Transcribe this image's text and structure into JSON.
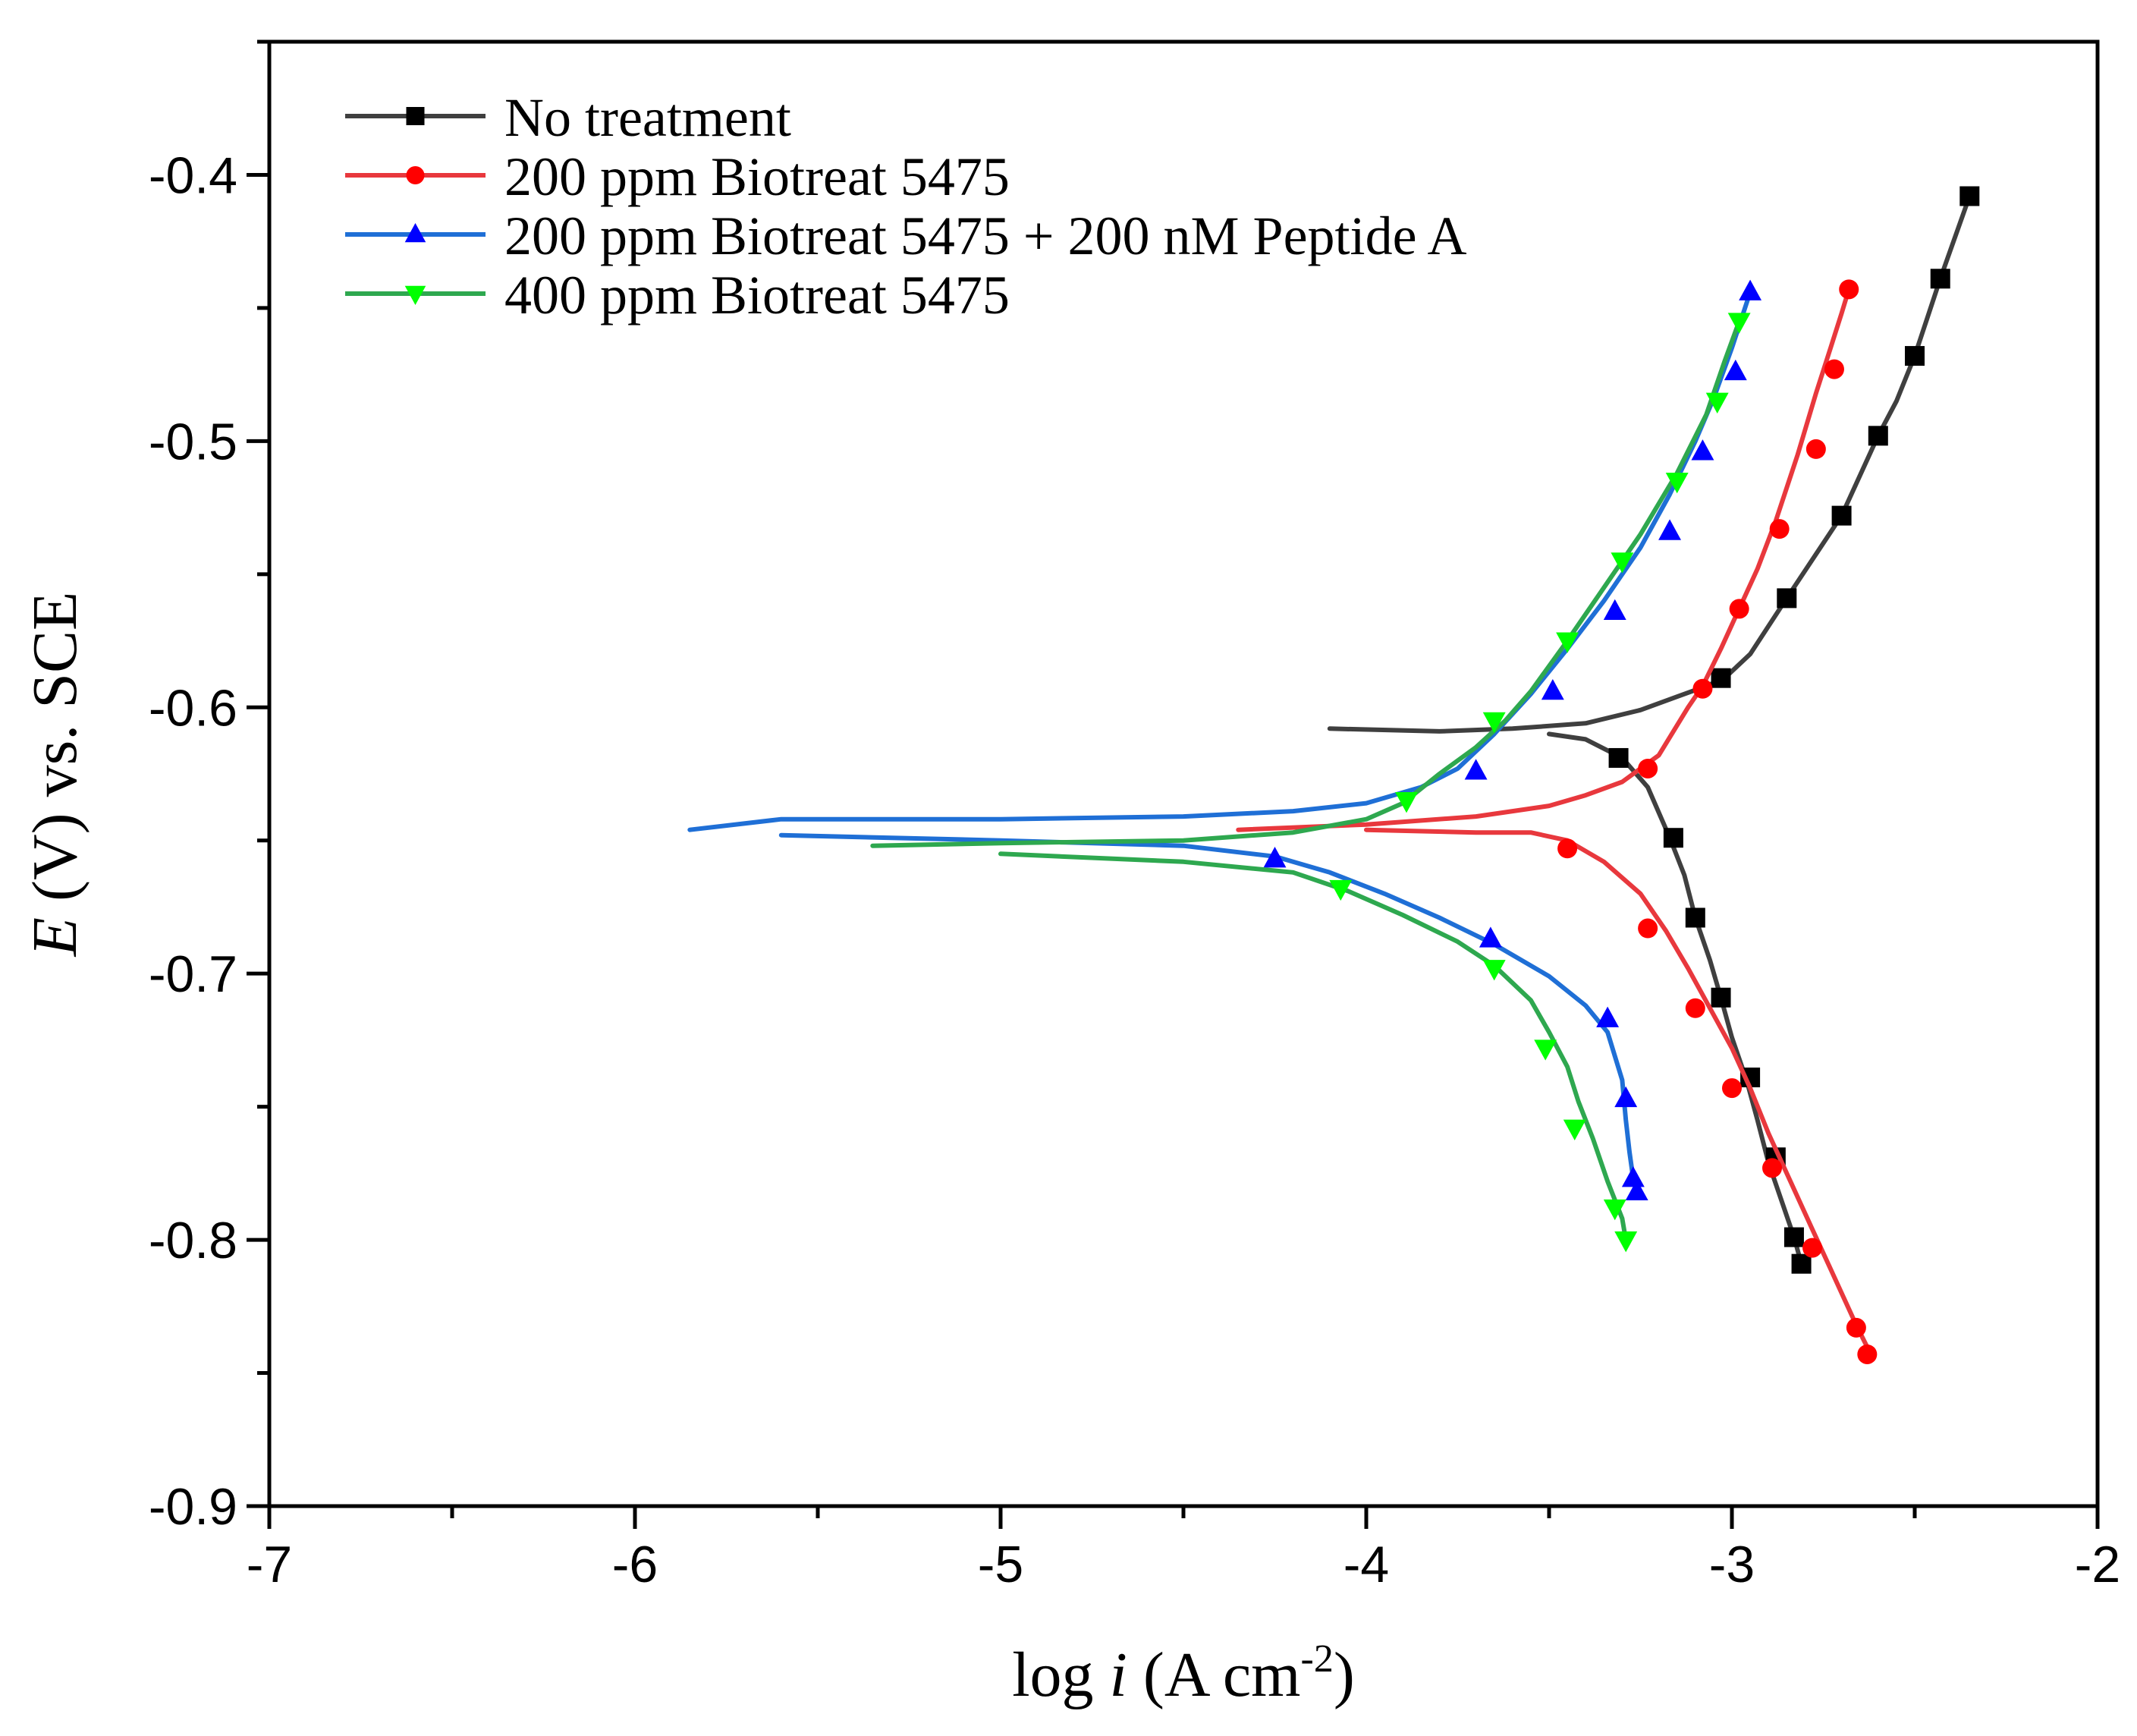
{
  "chart_data": {
    "type": "line",
    "title": "",
    "xlabel": "log i (A cm-2)",
    "xlabel_parts": {
      "prefix": "log ",
      "var": "i",
      "unit_open": " (A cm",
      "sup": "-2",
      "unit_close": ")"
    },
    "ylabel": "E (V) vs. SCE",
    "ylabel_parts": {
      "var": "E",
      "rest": " (V) vs. SCE"
    },
    "xlim": [
      -7,
      -2
    ],
    "ylim": [
      -0.9,
      -0.35
    ],
    "x_ticks": [
      -7,
      -6,
      -5,
      -4,
      -3,
      -2
    ],
    "x_tick_labels": [
      "-7",
      "-6",
      "-5",
      "-4",
      "-3",
      "-2"
    ],
    "y_ticks": [
      -0.9,
      -0.8,
      -0.7,
      -0.6,
      -0.5,
      -0.4
    ],
    "y_tick_labels": [
      "-0.9",
      "-0.8",
      "-0.7",
      "-0.6",
      "-0.5",
      "-0.4"
    ],
    "grid": false,
    "legend_position": "top-left",
    "series": [
      {
        "name": "No treatment",
        "color": "#3f3f3f",
        "marker_color": "#000000",
        "marker": "square",
        "x": [
          -4.1,
          -3.8,
          -3.6,
          -3.4,
          -3.25,
          -3.15,
          -3.07,
          -3.02,
          -2.95,
          -2.85,
          -2.7,
          -2.6,
          -2.55,
          -2.5,
          -2.43,
          -2.35,
          -3.5,
          -3.4,
          -3.3,
          -3.23,
          -3.17,
          -3.13,
          -3.1,
          -3.06,
          -3.03,
          -3.0,
          -2.96,
          -2.93,
          -2.9,
          -2.86,
          -2.83,
          -2.81
        ],
        "y": [
          -0.608,
          -0.609,
          -0.608,
          -0.606,
          -0.601,
          -0.596,
          -0.592,
          -0.589,
          -0.58,
          -0.559,
          -0.528,
          -0.498,
          -0.485,
          -0.468,
          -0.439,
          -0.408,
          -0.61,
          -0.612,
          -0.619,
          -0.63,
          -0.649,
          -0.663,
          -0.679,
          -0.695,
          -0.709,
          -0.724,
          -0.74,
          -0.755,
          -0.771,
          -0.787,
          -0.799,
          -0.809
        ],
        "markers_x": [
          -2.35,
          -2.43,
          -2.5,
          -2.6,
          -2.7,
          -2.85,
          -3.03,
          -3.31,
          -3.16,
          -3.1,
          -3.03,
          -2.95,
          -2.88,
          -2.83,
          -2.81
        ],
        "markers_y": [
          -0.408,
          -0.439,
          -0.468,
          -0.498,
          -0.528,
          -0.559,
          -0.589,
          -0.619,
          -0.649,
          -0.679,
          -0.709,
          -0.739,
          -0.769,
          -0.799,
          -0.809
        ]
      },
      {
        "name": "200 ppm Biotreat 5475",
        "color": "#e8383d",
        "marker_color": "#ff0000",
        "marker": "circle",
        "x": [
          -4.35,
          -4.0,
          -3.7,
          -3.5,
          -3.4,
          -3.3,
          -3.2,
          -3.12,
          -3.08,
          -3.03,
          -2.98,
          -2.93,
          -2.88,
          -2.82,
          -2.77,
          -2.73,
          -2.7,
          -2.68,
          -4.0,
          -3.7,
          -3.55,
          -3.45,
          -3.35,
          -3.25,
          -3.18,
          -3.12,
          -3.06,
          -3.0,
          -2.95,
          -2.9,
          -2.84,
          -2.78,
          -2.72,
          -2.66,
          -2.62
        ],
        "y": [
          -0.646,
          -0.644,
          -0.641,
          -0.637,
          -0.633,
          -0.628,
          -0.618,
          -0.6,
          -0.592,
          -0.578,
          -0.563,
          -0.548,
          -0.53,
          -0.505,
          -0.482,
          -0.465,
          -0.452,
          -0.443,
          -0.646,
          -0.647,
          -0.647,
          -0.65,
          -0.658,
          -0.67,
          -0.684,
          -0.698,
          -0.713,
          -0.728,
          -0.743,
          -0.76,
          -0.778,
          -0.796,
          -0.814,
          -0.832,
          -0.843
        ],
        "markers_x": [
          -2.68,
          -2.72,
          -2.77,
          -2.87,
          -2.98,
          -3.08,
          -3.23,
          -3.45,
          -3.23,
          -3.1,
          -3.0,
          -2.89,
          -2.78,
          -2.66,
          -2.63
        ],
        "markers_y": [
          -0.443,
          -0.473,
          -0.503,
          -0.533,
          -0.563,
          -0.593,
          -0.623,
          -0.653,
          -0.683,
          -0.713,
          -0.743,
          -0.773,
          -0.803,
          -0.833,
          -0.843
        ]
      },
      {
        "name": "200 ppm Biotreat 5475 + 200 nM Peptide A",
        "color": "#1f6fd6",
        "marker_color": "#0000ff",
        "marker": "triangle-up",
        "x": [
          -5.85,
          -5.6,
          -5.0,
          -4.5,
          -4.2,
          -4.0,
          -3.85,
          -3.75,
          -3.65,
          -3.55,
          -3.45,
          -3.35,
          -3.25,
          -3.17,
          -3.1,
          -3.05,
          -3.0,
          -2.95,
          -5.6,
          -5.0,
          -4.5,
          -4.25,
          -4.1,
          -3.95,
          -3.8,
          -3.65,
          -3.5,
          -3.4,
          -3.34,
          -3.3,
          -3.29,
          -3.28,
          -3.27,
          -3.26
        ],
        "y": [
          -0.646,
          -0.642,
          -0.642,
          -0.641,
          -0.639,
          -0.636,
          -0.63,
          -0.623,
          -0.61,
          -0.595,
          -0.578,
          -0.56,
          -0.54,
          -0.52,
          -0.5,
          -0.484,
          -0.465,
          -0.444,
          -0.648,
          -0.65,
          -0.652,
          -0.656,
          -0.662,
          -0.67,
          -0.679,
          -0.689,
          -0.701,
          -0.712,
          -0.722,
          -0.74,
          -0.755,
          -0.767,
          -0.777,
          -0.782
        ],
        "markers_x": [
          -2.95,
          -2.99,
          -3.08,
          -3.17,
          -3.32,
          -3.49,
          -3.7,
          -4.25,
          -3.66,
          -3.34,
          -3.29,
          -3.27,
          -3.26
        ],
        "markers_y": [
          -0.444,
          -0.474,
          -0.504,
          -0.534,
          -0.564,
          -0.594,
          -0.624,
          -0.657,
          -0.687,
          -0.717,
          -0.747,
          -0.777,
          -0.782
        ]
      },
      {
        "name": "400 ppm Biotreat 5475",
        "color": "#2ea84f",
        "marker_color": "#00ff00",
        "marker": "triangle-down",
        "x": [
          -5.35,
          -5.0,
          -4.5,
          -4.2,
          -4.0,
          -3.9,
          -3.8,
          -3.7,
          -3.62,
          -3.55,
          -3.45,
          -3.35,
          -3.25,
          -3.15,
          -3.07,
          -3.02,
          -2.98,
          -5.0,
          -4.5,
          -4.2,
          -4.05,
          -3.9,
          -3.75,
          -3.65,
          -3.55,
          -3.5,
          -3.45,
          -3.42,
          -3.38,
          -3.34,
          -3.3,
          -3.29
        ],
        "y": [
          -0.652,
          -0.651,
          -0.65,
          -0.647,
          -0.642,
          -0.636,
          -0.625,
          -0.615,
          -0.605,
          -0.594,
          -0.575,
          -0.555,
          -0.535,
          -0.512,
          -0.49,
          -0.47,
          -0.455,
          -0.655,
          -0.658,
          -0.662,
          -0.669,
          -0.678,
          -0.688,
          -0.697,
          -0.71,
          -0.722,
          -0.735,
          -0.748,
          -0.762,
          -0.778,
          -0.792,
          -0.8
        ],
        "markers_x": [
          -2.98,
          -3.04,
          -3.15,
          -3.3,
          -3.45,
          -3.65,
          -3.89,
          -4.07,
          -3.65,
          -3.51,
          -3.43,
          -3.32,
          -3.29
        ],
        "markers_y": [
          -0.455,
          -0.485,
          -0.515,
          -0.545,
          -0.575,
          -0.605,
          -0.635,
          -0.668,
          -0.698,
          -0.728,
          -0.758,
          -0.788,
          -0.8
        ]
      }
    ]
  }
}
